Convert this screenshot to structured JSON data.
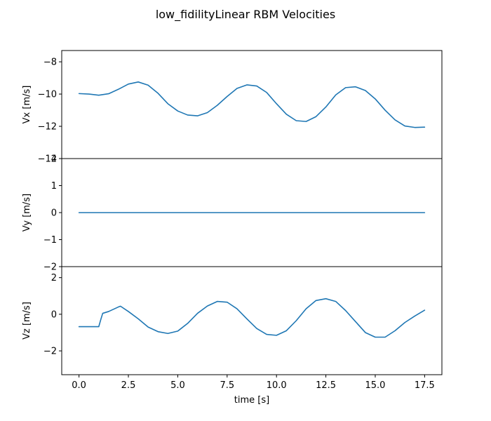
{
  "chart_data": {
    "type": "line",
    "title": "low_fidilityLinear RBM Velocities",
    "xlabel": "time [s]",
    "xlim": [
      -0.875,
      18.375
    ],
    "xticks": [
      0.0,
      2.5,
      5.0,
      7.5,
      10.0,
      12.5,
      15.0,
      17.5
    ],
    "xtick_labels": [
      "0.0",
      "2.5",
      "5.0",
      "7.5",
      "10.0",
      "12.5",
      "15.0",
      "17.5"
    ],
    "color": "#1f77b4",
    "grid": false,
    "subplots": [
      {
        "ylabel": "Vx [m/s]",
        "ylim": [
          -14,
          -7.3
        ],
        "yticks": [
          -14,
          -12,
          -10,
          -8
        ],
        "ytick_labels": [
          "−14",
          "−12",
          "−10",
          "−8"
        ],
        "x": [
          0.0,
          0.5,
          1.0,
          1.5,
          2.0,
          2.5,
          3.0,
          3.5,
          4.0,
          4.5,
          5.0,
          5.5,
          6.0,
          6.5,
          7.0,
          7.5,
          8.0,
          8.5,
          9.0,
          9.5,
          10.0,
          10.5,
          11.0,
          11.5,
          12.0,
          12.5,
          13.0,
          13.5,
          14.0,
          14.5,
          15.0,
          15.5,
          16.0,
          16.5,
          17.0,
          17.5
        ],
        "y": [
          -9.97,
          -10.0,
          -10.07,
          -9.98,
          -9.7,
          -9.38,
          -9.25,
          -9.45,
          -9.95,
          -10.6,
          -11.05,
          -11.3,
          -11.35,
          -11.15,
          -10.7,
          -10.15,
          -9.65,
          -9.43,
          -9.5,
          -9.9,
          -10.6,
          -11.25,
          -11.65,
          -11.7,
          -11.4,
          -10.8,
          -10.05,
          -9.6,
          -9.55,
          -9.78,
          -10.3,
          -11.0,
          -11.6,
          -11.98,
          -12.07,
          -12.05
        ]
      },
      {
        "ylabel": "Vy [m/s]",
        "ylim": [
          -2,
          2
        ],
        "yticks": [
          -2,
          -1,
          0,
          1,
          2
        ],
        "ytick_labels": [
          "−2",
          "−1",
          "0",
          "1",
          "2"
        ],
        "x": [
          0.0,
          17.5
        ],
        "y": [
          0,
          0
        ]
      },
      {
        "ylabel": "Vz [m/s]",
        "ylim": [
          -3.3,
          2.6
        ],
        "yticks": [
          -2,
          0,
          2
        ],
        "ytick_labels": [
          "−2",
          "0",
          "2"
        ],
        "x": [
          0.0,
          0.5,
          1.0,
          1.1,
          1.2,
          1.5,
          2.0,
          2.1,
          2.5,
          3.0,
          3.5,
          4.0,
          4.5,
          5.0,
          5.5,
          6.0,
          6.5,
          7.0,
          7.5,
          8.0,
          8.5,
          9.0,
          9.5,
          10.0,
          10.5,
          11.0,
          11.5,
          12.0,
          12.5,
          13.0,
          13.5,
          14.0,
          14.5,
          15.0,
          15.5,
          16.0,
          16.5,
          17.0,
          17.5
        ],
        "y": [
          -0.68,
          -0.68,
          -0.68,
          -0.3,
          0.05,
          0.15,
          0.4,
          0.44,
          0.15,
          -0.25,
          -0.7,
          -0.95,
          -1.05,
          -0.92,
          -0.5,
          0.05,
          0.45,
          0.7,
          0.66,
          0.3,
          -0.25,
          -0.78,
          -1.1,
          -1.15,
          -0.9,
          -0.35,
          0.3,
          0.75,
          0.85,
          0.7,
          0.2,
          -0.4,
          -1.0,
          -1.25,
          -1.25,
          -0.9,
          -0.45,
          -0.1,
          0.22
        ]
      }
    ]
  }
}
